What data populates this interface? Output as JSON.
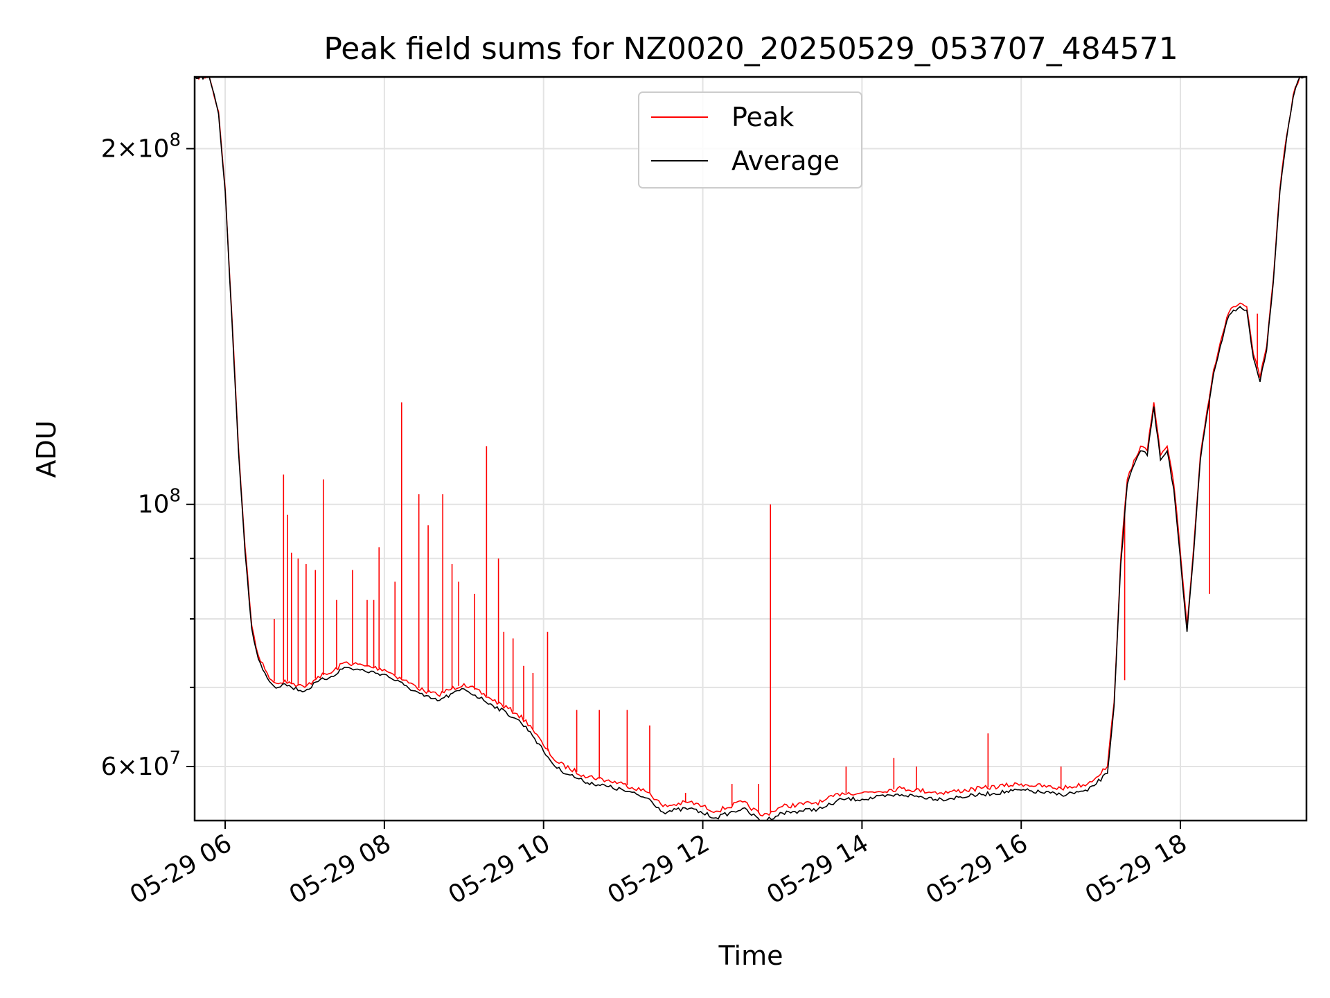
{
  "chart_data": {
    "type": "line",
    "title": "Peak field sums for NZ0020_20250529_053707_484571",
    "xlabel": "Time",
    "ylabel": "ADU",
    "yscale": "log",
    "xlim": [
      "2025-05-29 05:37",
      "2025-05-29 19:35"
    ],
    "ylim": [
      54000000,
      230000000
    ],
    "grid": true,
    "legend_position": "top-center",
    "x_ticks": [
      {
        "value": "2025-05-29 06:00",
        "label": "05-29 06"
      },
      {
        "value": "2025-05-29 08:00",
        "label": "05-29 08"
      },
      {
        "value": "2025-05-29 10:00",
        "label": "05-29 10"
      },
      {
        "value": "2025-05-29 12:00",
        "label": "05-29 12"
      },
      {
        "value": "2025-05-29 14:00",
        "label": "05-29 14"
      },
      {
        "value": "2025-05-29 16:00",
        "label": "05-29 16"
      },
      {
        "value": "2025-05-29 18:00",
        "label": "05-29 18"
      }
    ],
    "y_ticks": [
      {
        "value": 60000000,
        "label_base": "6×10",
        "label_exp": "7"
      },
      {
        "value": 100000000,
        "label_base": "10",
        "label_exp": "8"
      },
      {
        "value": 200000000,
        "label_base": "2×10",
        "label_exp": "8"
      }
    ],
    "y_minor_ticks": [
      70000000,
      80000000,
      90000000
    ],
    "series": [
      {
        "name": "Peak",
        "color": "#ff0000",
        "x": [
          "2025-05-29 05:37",
          "2025-05-29 05:48",
          "2025-05-29 05:55",
          "2025-05-29 06:00",
          "2025-05-29 06:05",
          "2025-05-29 06:10",
          "2025-05-29 06:15",
          "2025-05-29 06:20",
          "2025-05-29 06:25",
          "2025-05-29 06:30",
          "2025-05-29 06:35",
          "2025-05-29 06:40",
          "2025-05-29 06:45",
          "2025-05-29 06:50",
          "2025-05-29 07:00",
          "2025-05-29 07:10",
          "2025-05-29 07:20",
          "2025-05-29 07:30",
          "2025-05-29 07:45",
          "2025-05-29 08:00",
          "2025-05-29 08:15",
          "2025-05-29 08:30",
          "2025-05-29 08:40",
          "2025-05-29 09:00",
          "2025-05-29 09:20",
          "2025-05-29 09:40",
          "2025-05-29 09:50",
          "2025-05-29 10:00",
          "2025-05-29 10:10",
          "2025-05-29 10:30",
          "2025-05-29 11:00",
          "2025-05-29 11:20",
          "2025-05-29 11:30",
          "2025-05-29 11:50",
          "2025-05-29 12:10",
          "2025-05-29 12:30",
          "2025-05-29 12:45",
          "2025-05-29 13:00",
          "2025-05-29 13:30",
          "2025-05-29 13:45",
          "2025-05-29 14:00",
          "2025-05-29 14:30",
          "2025-05-29 15:00",
          "2025-05-29 15:30",
          "2025-05-29 16:00",
          "2025-05-29 16:30",
          "2025-05-29 16:50",
          "2025-05-29 17:05",
          "2025-05-29 17:10",
          "2025-05-29 17:15",
          "2025-05-29 17:20",
          "2025-05-29 17:25",
          "2025-05-29 17:30",
          "2025-05-29 17:35",
          "2025-05-29 17:40",
          "2025-05-29 17:45",
          "2025-05-29 17:50",
          "2025-05-29 17:55",
          "2025-05-29 18:00",
          "2025-05-29 18:05",
          "2025-05-29 18:10",
          "2025-05-29 18:15",
          "2025-05-29 18:20",
          "2025-05-29 18:25",
          "2025-05-29 18:30",
          "2025-05-29 18:35",
          "2025-05-29 18:40",
          "2025-05-29 18:45",
          "2025-05-29 18:50",
          "2025-05-29 18:55",
          "2025-05-29 19:00",
          "2025-05-29 19:05",
          "2025-05-29 19:10",
          "2025-05-29 19:15",
          "2025-05-29 19:20",
          "2025-05-29 19:25",
          "2025-05-29 19:30",
          "2025-05-29 19:35"
        ],
        "y": [
          230000000,
          230000000,
          215000000,
          185000000,
          145000000,
          112000000,
          92000000,
          79000000,
          74500000,
          72500000,
          71000000,
          70500000,
          71000000,
          70500000,
          70000000,
          71500000,
          72000000,
          73500000,
          73000000,
          72500000,
          71000000,
          69500000,
          69000000,
          70500000,
          68500000,
          66500000,
          65000000,
          62500000,
          60500000,
          59000000,
          58000000,
          57000000,
          55500000,
          56000000,
          55000000,
          56000000,
          54500000,
          55500000,
          56000000,
          57000000,
          57000000,
          57500000,
          57000000,
          57500000,
          58000000,
          57500000,
          58000000,
          60000000,
          68000000,
          90000000,
          105000000,
          109000000,
          112000000,
          111000000,
          122000000,
          110000000,
          112000000,
          104000000,
          91000000,
          79000000,
          92000000,
          110000000,
          120000000,
          130000000,
          137000000,
          144000000,
          147000000,
          148000000,
          147000000,
          134000000,
          128000000,
          136000000,
          155000000,
          185000000,
          205000000,
          222000000,
          230000000,
          230000000
        ]
      },
      {
        "name": "Average",
        "color": "#000000",
        "x": [
          "2025-05-29 05:37",
          "2025-05-29 05:48",
          "2025-05-29 05:55",
          "2025-05-29 06:00",
          "2025-05-29 06:05",
          "2025-05-29 06:10",
          "2025-05-29 06:15",
          "2025-05-29 06:20",
          "2025-05-29 06:25",
          "2025-05-29 06:30",
          "2025-05-29 06:35",
          "2025-05-29 06:40",
          "2025-05-29 06:45",
          "2025-05-29 06:50",
          "2025-05-29 07:00",
          "2025-05-29 07:10",
          "2025-05-29 07:20",
          "2025-05-29 07:30",
          "2025-05-29 07:45",
          "2025-05-29 08:00",
          "2025-05-29 08:15",
          "2025-05-29 08:30",
          "2025-05-29 08:40",
          "2025-05-29 09:00",
          "2025-05-29 09:20",
          "2025-05-29 09:40",
          "2025-05-29 09:50",
          "2025-05-29 10:00",
          "2025-05-29 10:10",
          "2025-05-29 10:30",
          "2025-05-29 11:00",
          "2025-05-29 11:20",
          "2025-05-29 11:30",
          "2025-05-29 11:50",
          "2025-05-29 12:10",
          "2025-05-29 12:30",
          "2025-05-29 12:45",
          "2025-05-29 13:00",
          "2025-05-29 13:30",
          "2025-05-29 13:45",
          "2025-05-29 14:00",
          "2025-05-29 14:30",
          "2025-05-29 15:00",
          "2025-05-29 15:30",
          "2025-05-29 16:00",
          "2025-05-29 16:30",
          "2025-05-29 16:50",
          "2025-05-29 17:05",
          "2025-05-29 17:10",
          "2025-05-29 17:15",
          "2025-05-29 17:20",
          "2025-05-29 17:25",
          "2025-05-29 17:30",
          "2025-05-29 17:35",
          "2025-05-29 17:40",
          "2025-05-29 17:45",
          "2025-05-29 17:50",
          "2025-05-29 17:55",
          "2025-05-29 18:00",
          "2025-05-29 18:05",
          "2025-05-29 18:10",
          "2025-05-29 18:15",
          "2025-05-29 18:20",
          "2025-05-29 18:25",
          "2025-05-29 18:30",
          "2025-05-29 18:35",
          "2025-05-29 18:40",
          "2025-05-29 18:45",
          "2025-05-29 18:50",
          "2025-05-29 18:55",
          "2025-05-29 19:00",
          "2025-05-29 19:05",
          "2025-05-29 19:10",
          "2025-05-29 19:15",
          "2025-05-29 19:20",
          "2025-05-29 19:25",
          "2025-05-29 19:30",
          "2025-05-29 19:35"
        ],
        "y": [
          230000000,
          230000000,
          214000000,
          184000000,
          144000000,
          111000000,
          91000000,
          78500000,
          74000000,
          72000000,
          70500000,
          70000000,
          70500000,
          70000000,
          69500000,
          70800000,
          71500000,
          72800000,
          72300000,
          71800000,
          70300000,
          68800000,
          68200000,
          69800000,
          67800000,
          65800000,
          64200000,
          61800000,
          59800000,
          58300000,
          57300000,
          56300000,
          54900000,
          55300000,
          54300000,
          55300000,
          53900000,
          54800000,
          55300000,
          56300000,
          56300000,
          56800000,
          56300000,
          56800000,
          57300000,
          56800000,
          57200000,
          59200000,
          67500000,
          89000000,
          104000000,
          108000000,
          111000000,
          110000000,
          121000000,
          109000000,
          111000000,
          103000000,
          90000000,
          78000000,
          91000000,
          109000000,
          119000000,
          129000000,
          136000000,
          143000000,
          146000000,
          147000000,
          146000000,
          133000000,
          127000000,
          135000000,
          154000000,
          184000000,
          204000000,
          221000000,
          230000000,
          230000000
        ]
      }
    ],
    "peak_spikes": {
      "x": [
        "2025-05-29 06:37",
        "2025-05-29 06:44",
        "2025-05-29 06:47",
        "2025-05-29 06:50",
        "2025-05-29 06:55",
        "2025-05-29 07:01",
        "2025-05-29 07:08",
        "2025-05-29 07:14",
        "2025-05-29 07:24",
        "2025-05-29 07:36",
        "2025-05-29 07:47",
        "2025-05-29 07:52",
        "2025-05-29 07:56",
        "2025-05-29 08:08",
        "2025-05-29 08:13",
        "2025-05-29 08:26",
        "2025-05-29 08:33",
        "2025-05-29 08:44",
        "2025-05-29 08:51",
        "2025-05-29 08:56",
        "2025-05-29 09:08",
        "2025-05-29 09:17",
        "2025-05-29 09:26",
        "2025-05-29 09:30",
        "2025-05-29 09:37",
        "2025-05-29 09:45",
        "2025-05-29 09:52",
        "2025-05-29 10:03",
        "2025-05-29 10:25",
        "2025-05-29 10:42",
        "2025-05-29 11:03",
        "2025-05-29 11:20",
        "2025-05-29 11:47",
        "2025-05-29 12:22",
        "2025-05-29 12:42",
        "2025-05-29 12:51",
        "2025-05-29 13:48",
        "2025-05-29 14:24",
        "2025-05-29 14:41",
        "2025-05-29 15:35",
        "2025-05-29 16:30",
        "2025-05-29 17:18",
        "2025-05-29 18:22",
        "2025-05-29 18:58"
      ],
      "y": [
        80000000,
        106000000,
        98000000,
        91000000,
        90000000,
        89000000,
        88000000,
        105000000,
        83000000,
        88000000,
        83000000,
        83000000,
        92000000,
        86000000,
        122000000,
        102000000,
        96000000,
        102000000,
        89000000,
        86000000,
        84000000,
        112000000,
        90000000,
        78000000,
        77000000,
        73000000,
        72000000,
        78000000,
        67000000,
        67000000,
        67000000,
        65000000,
        57000000,
        58000000,
        58000000,
        100000000,
        60000000,
        61000000,
        60000000,
        64000000,
        60000000,
        71000000,
        84000000,
        145000000
      ]
    }
  },
  "legend": [
    {
      "label": "Peak",
      "color": "#ff0000"
    },
    {
      "label": "Average",
      "color": "#000000"
    }
  ]
}
